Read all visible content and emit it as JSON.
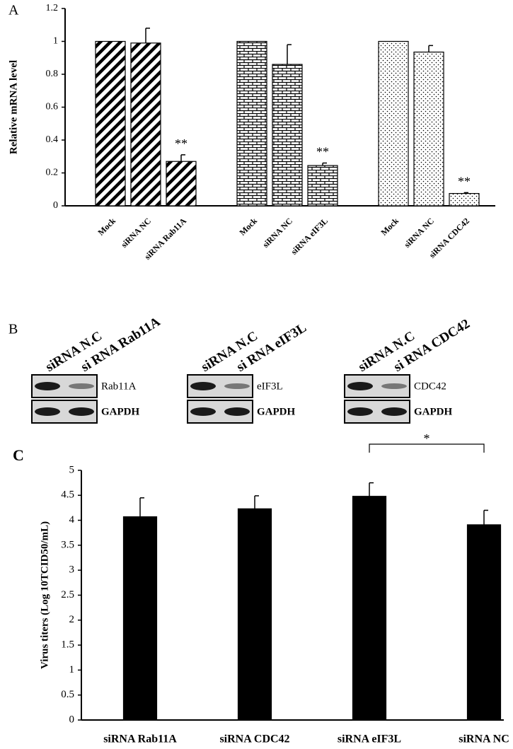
{
  "panel_labels": [
    "A",
    "B",
    "C"
  ],
  "chart_data": [
    {
      "type": "bar",
      "y_label": "Relative mRNA level",
      "categories": [
        "Mock",
        "siRNA NC",
        "siRNA Rab11A",
        "Mock",
        "siRNA NC",
        "siRNA eIF3L",
        "Mock",
        "siRNA NC",
        "siRNA CDC42"
      ],
      "values": [
        1,
        0.99,
        0.27,
        1,
        0.86,
        0.245,
        1,
        0.935,
        0.075
      ],
      "errors": [
        0,
        0.09,
        0.04,
        0,
        0.12,
        0.015,
        0,
        0.04,
        0.005
      ],
      "patterns": [
        "diagonal",
        "diagonal",
        "diagonal",
        "brick",
        "brick",
        "brick",
        "dots",
        "dots",
        "dots"
      ],
      "significance": [
        null,
        null,
        "**",
        null,
        null,
        "**",
        null,
        null,
        "**"
      ],
      "color": "#000000",
      "ylim": [
        0,
        1.2
      ],
      "yticks": [
        0,
        0.2,
        0.4,
        0.6,
        0.8,
        1,
        1.2
      ],
      "grid": false
    },
    {
      "type": "bar",
      "y_label": "Virus titers (Log 10TCID50/mL)",
      "categories": [
        "siRNA Rab11A",
        "siRNA CDC42",
        "siRNA eIF3L",
        "siRNA NC"
      ],
      "values": [
        4.07,
        4.23,
        4.48,
        3.91
      ],
      "errors": [
        0.38,
        0.26,
        0.27,
        0.29
      ],
      "comparisons": [
        {
          "between": [
            2,
            3
          ],
          "label": "*"
        }
      ],
      "color": "#000000",
      "ylim": [
        0,
        5
      ],
      "yticks": [
        0,
        0.5,
        1,
        1.5,
        2,
        2.5,
        3,
        3.5,
        4,
        4.5,
        5
      ],
      "grid": false
    }
  ],
  "blots": [
    {
      "lanes": [
        "siRNA N.C",
        "si RNA Rab11A"
      ],
      "rows": [
        "Rab11A",
        "GAPDH"
      ]
    },
    {
      "lanes": [
        "siRNA N.C",
        "si RNA eIF3L"
      ],
      "rows": [
        "eIF3L",
        "GAPDH"
      ]
    },
    {
      "lanes": [
        "siRNA N.C",
        "si RNA CDC42"
      ],
      "rows": [
        "CDC42",
        "GAPDH"
      ]
    }
  ]
}
